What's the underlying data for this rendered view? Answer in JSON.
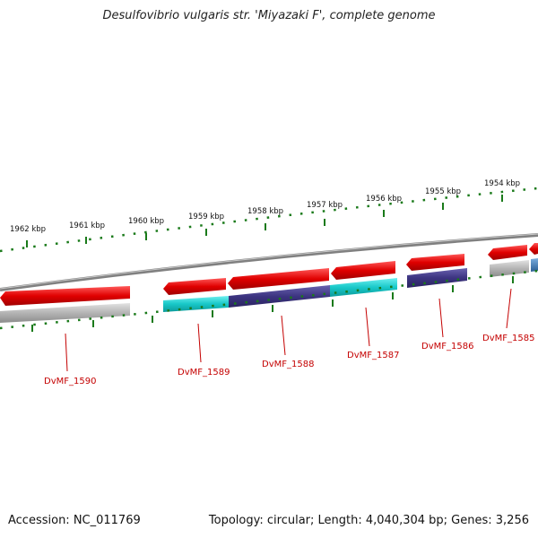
{
  "title": "Desulfovibrio vulgaris str. 'Miyazaki F', complete genome",
  "footer": {
    "accession": "Accession: NC_011769",
    "topology": "Topology: circular; Length: 4,040,304 bp; Genes: 3,256"
  },
  "scale_labels": [
    "1962 kbp",
    "1961 kbp",
    "1960 kbp",
    "1959 kbp",
    "1958 kbp",
    "1957 kbp",
    "1956 kbp",
    "1955 kbp",
    "1954 kbp"
  ],
  "gene_labels": [
    "DvMF_1590",
    "DvMF_1589",
    "DvMF_1588",
    "DvMF_1587",
    "DvMF_1586",
    "DvMF_1585"
  ],
  "colors": {
    "forward_strand": "#e00000",
    "backbone": "#808080",
    "tick": "#1a7a1a",
    "cog_cyan": "#18c8c8",
    "cog_purple": "#3c3480",
    "cog_gray": "#b4b4b4",
    "cog_blue": "#3c78b4",
    "label": "#c40000"
  }
}
